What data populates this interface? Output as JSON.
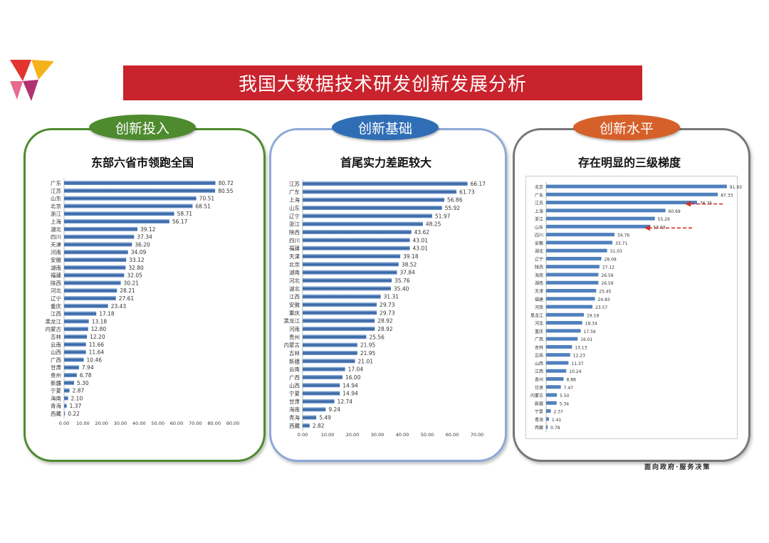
{
  "title": "我国大数据技术研发创新发展分析",
  "footer": "面向政府·服务决策",
  "colors": {
    "banner": "#c9232d",
    "green": "#4e8a2e",
    "blue": "#2f6eb5",
    "orange": "#d5602a",
    "bar": "#4f81bd",
    "arrow": "#d0312d"
  },
  "panels": [
    {
      "pill": "创新投入",
      "subtitle": "东部六省市领跑全国"
    },
    {
      "pill": "创新基础",
      "subtitle": "首尾实力差距较大"
    },
    {
      "pill": "创新水平",
      "subtitle": "存在明显的三级梯度"
    }
  ],
  "chart_data": [
    {
      "type": "bar",
      "orientation": "horizontal",
      "xlim": [
        0,
        90
      ],
      "xticks": [
        "0.00",
        "10.00",
        "20.00",
        "30.00",
        "40.00",
        "50.00",
        "60.00",
        "70.00",
        "80.00",
        "90.00"
      ],
      "categories": [
        "广东",
        "江苏",
        "山东",
        "北京",
        "浙江",
        "上海",
        "湖北",
        "四川",
        "天津",
        "河南",
        "安徽",
        "湖南",
        "福建",
        "陕西",
        "河北",
        "辽宁",
        "重庆",
        "江西",
        "黑龙江",
        "内蒙古",
        "吉林",
        "云南",
        "山西",
        "广西",
        "甘肃",
        "贵州",
        "新疆",
        "宁夏",
        "海南",
        "青海",
        "西藏"
      ],
      "values": [
        80.72,
        80.55,
        70.51,
        68.51,
        58.71,
        56.17,
        39.12,
        37.34,
        36.2,
        34.09,
        33.12,
        32.8,
        32.05,
        30.21,
        28.21,
        27.61,
        23.43,
        17.18,
        13.18,
        12.8,
        12.2,
        11.66,
        11.64,
        10.46,
        7.94,
        6.78,
        5.3,
        2.87,
        2.1,
        1.37,
        0.22
      ]
    },
    {
      "type": "bar",
      "orientation": "horizontal",
      "xlim": [
        0,
        70
      ],
      "xticks": [
        "0.00",
        "10.00",
        "20.00",
        "30.00",
        "40.00",
        "50.00",
        "60.00",
        "70.00"
      ],
      "categories": [
        "江苏",
        "广东",
        "上海",
        "山东",
        "辽宁",
        "浙江",
        "陕西",
        "四川",
        "福建",
        "天津",
        "北京",
        "湖南",
        "河北",
        "湖北",
        "江西",
        "安徽",
        "重庆",
        "黑龙江",
        "河南",
        "贵州",
        "内蒙古",
        "吉林",
        "新疆",
        "云南",
        "广西",
        "山西",
        "宁夏",
        "甘肃",
        "海南",
        "青海",
        "西藏"
      ],
      "values": [
        66.17,
        61.73,
        56.86,
        55.92,
        51.97,
        48.25,
        43.62,
        43.01,
        43.01,
        39.18,
        38.52,
        37.84,
        35.76,
        35.4,
        31.31,
        29.73,
        29.73,
        28.92,
        28.92,
        25.56,
        21.95,
        21.95,
        21.01,
        17.04,
        16.0,
        14.94,
        14.94,
        12.74,
        9.24,
        5.49,
        2.82
      ]
    },
    {
      "type": "bar",
      "orientation": "horizontal",
      "xlim": [
        0,
        92
      ],
      "categories": [
        "北京",
        "广东",
        "江苏",
        "上海",
        "浙江",
        "山东",
        "四川",
        "安徽",
        "湖北",
        "辽宁",
        "陕西",
        "海南",
        "湖南",
        "天津",
        "福建",
        "河南",
        "黑龙江",
        "河北",
        "重庆",
        "广西",
        "吉林",
        "云南",
        "山西",
        "江西",
        "贵州",
        "甘肃",
        "内蒙古",
        "新疆",
        "宁夏",
        "青海",
        "西藏"
      ],
      "values": [
        91.93,
        87.33,
        76.75,
        60.69,
        55.29,
        53.03,
        34.76,
        33.71,
        31.03,
        28.09,
        27.12,
        26.59,
        26.59,
        25.45,
        24.83,
        23.57,
        19.19,
        18.34,
        17.59,
        16.01,
        13.13,
        12.23,
        11.37,
        10.24,
        8.88,
        7.47,
        5.5,
        5.34,
        2.37,
        1.41,
        0.78
      ],
      "annotations": [
        "arrow at 江苏",
        "arrow at 山东"
      ]
    }
  ]
}
